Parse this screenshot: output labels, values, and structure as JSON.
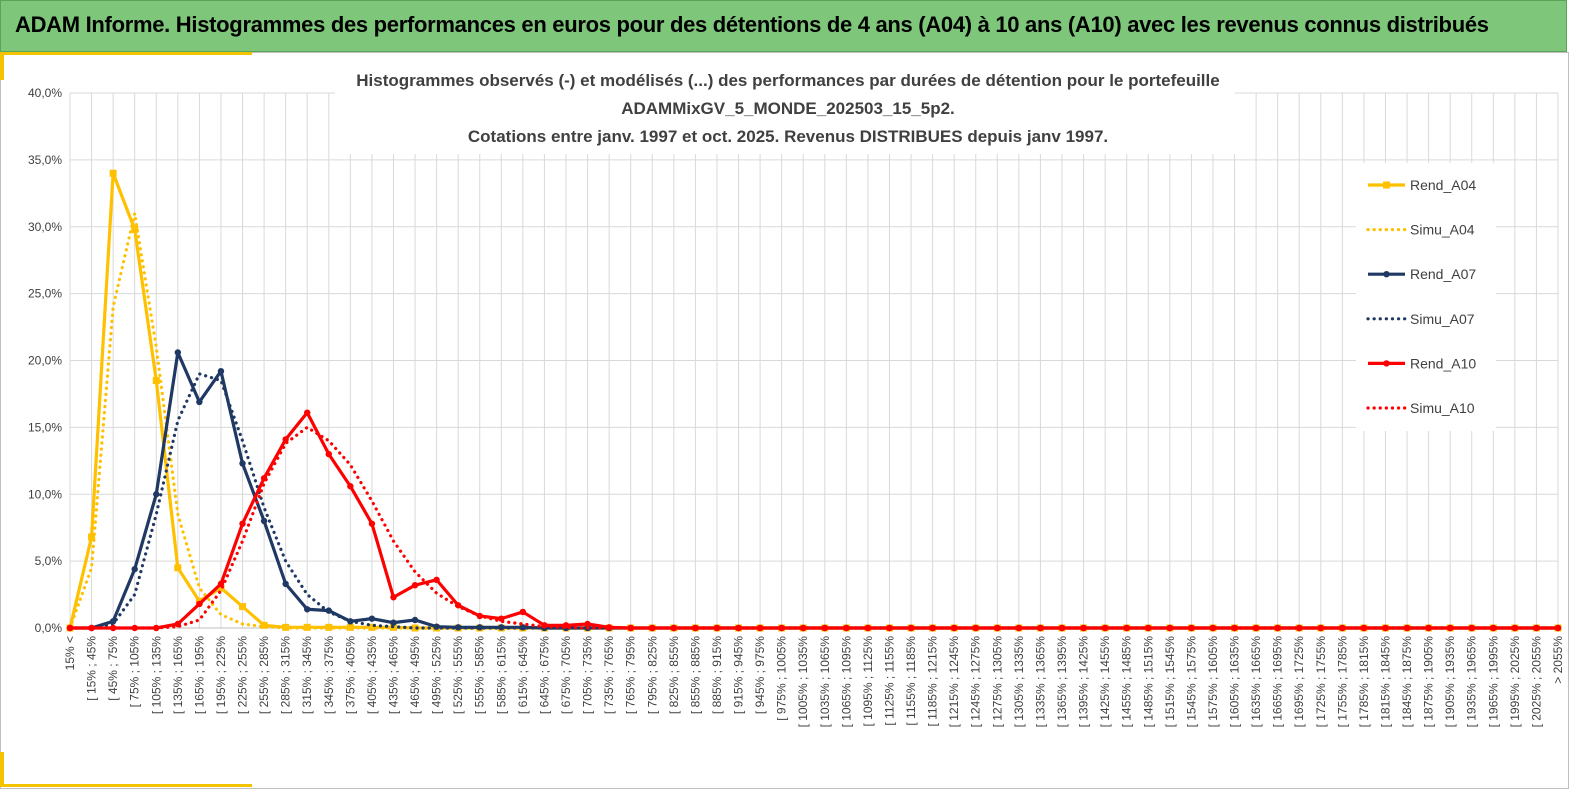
{
  "banner": {
    "title": "ADAM Informe. Histogrammes des performances en euros pour des détentions de 4 ans (A04) à 10 ans (A10) avec les revenus connus distribués"
  },
  "colors": {
    "yellow": "#FFC000",
    "navy": "#1F3864",
    "red": "#FF0000",
    "banner_green": "#7DC67A"
  },
  "chart_data": {
    "type": "line",
    "title_lines": [
      "Histogrammes observés (-) et modélisés (...) des performances par durées de détention pour le portefeuille",
      "ADAMMixGV_5_MONDE_202503_15_5p2.",
      "Cotations entre janv. 1997 et oct. 2025. Revenus DISTRIBUES depuis janv 1997."
    ],
    "ylim": [
      0,
      40
    ],
    "yticks": [
      "0,0%",
      "5,0%",
      "10,0%",
      "15,0%",
      "20,0%",
      "25,0%",
      "30,0%",
      "35,0%",
      "40,0%"
    ],
    "grid": true,
    "legend_position": "right",
    "categories": [
      "15% <",
      "[ 15% ; 45%",
      "[ 45% ; 75%",
      "[ 75% ; 105%",
      "[ 105% ; 135%",
      "[ 135% ; 165%",
      "[ 165% ; 195%",
      "[ 195% ; 225%",
      "[ 225% ; 255%",
      "[ 255% ; 285%",
      "[ 285% ; 315%",
      "[ 315% ; 345%",
      "[ 345% ; 375%",
      "[ 375% ; 405%",
      "[ 405% ; 435%",
      "[ 435% ; 465%",
      "[ 465% ; 495%",
      "[ 495% ; 525%",
      "[ 525% ; 555%",
      "[ 555% ; 585%",
      "[ 585% ; 615%",
      "[ 615% ; 645%",
      "[ 645% ; 675%",
      "[ 675% ; 705%",
      "[ 705% ; 735%",
      "[ 735% ; 765%",
      "[ 765% ; 795%",
      "[ 795% ; 825%",
      "[ 825% ; 855%",
      "[ 855% ; 885%",
      "[ 885% ; 915%",
      "[ 915% ; 945%",
      "[ 945% ; 975%",
      "[ 975% ; 1005%",
      "[ 1005% ; 1035%",
      "[ 1035% ; 1065%",
      "[ 1065% ; 1095%",
      "[ 1095% ; 1125%",
      "[ 1125% ; 1155%",
      "[ 1155% ; 1185%",
      "[ 1185% ; 1215%",
      "[ 1215% ; 1245%",
      "[ 1245% ; 1275%",
      "[ 1275% ; 1305%",
      "[ 1305% ; 1335%",
      "[ 1335% ; 1365%",
      "[ 1365% ; 1395%",
      "[ 1395% ; 1425%",
      "[ 1425% ; 1455%",
      "[ 1455% ; 1485%",
      "[ 1485% ; 1515%",
      "[ 1515% ; 1545%",
      "[ 1545% ; 1575%",
      "[ 1575% ; 1605%",
      "[ 1605% ; 1635%",
      "[ 1635% ; 1665%",
      "[ 1665% ; 1695%",
      "[ 1695% ; 1725%",
      "[ 1725% ; 1755%",
      "[ 1755% ; 1785%",
      "[ 1785% ; 1815%",
      "[ 1815% ; 1845%",
      "[ 1845% ; 1875%",
      "[ 1875% ; 1905%",
      "[ 1905% ; 1935%",
      "[ 1935% ; 1965%",
      "[ 1965% ; 1995%",
      "[ 1995% ; 2025%",
      "[ 2025% ; 2055%",
      "> 2055%"
    ],
    "series": [
      {
        "name": "Rend_A04",
        "style": "solid",
        "color": "#FFC000",
        "marker": "square",
        "values": [
          0,
          6.8,
          34.0,
          29.8,
          18.5,
          4.5,
          2.0,
          3.0,
          1.6,
          0.2,
          0.05,
          0.05,
          0.05,
          0.05,
          0.05,
          0.05,
          0,
          0,
          0,
          0,
          0,
          0,
          0,
          0,
          0,
          0,
          0,
          0,
          0,
          0,
          0,
          0,
          0,
          0,
          0,
          0,
          0,
          0,
          0,
          0,
          0,
          0,
          0,
          0,
          0,
          0,
          0,
          0,
          0,
          0,
          0,
          0,
          0,
          0,
          0,
          0,
          0,
          0,
          0,
          0,
          0,
          0,
          0,
          0,
          0,
          0,
          0,
          0,
          0,
          0
        ]
      },
      {
        "name": "Simu_A04",
        "style": "dotted",
        "color": "#FFC000",
        "marker": "none",
        "values": [
          0,
          4.5,
          24.0,
          31.0,
          21.0,
          8.5,
          3.0,
          1.0,
          0.3,
          0.1,
          0,
          0,
          0,
          0,
          0,
          0,
          0,
          0,
          0,
          0,
          0,
          0,
          0,
          0,
          0,
          0,
          0,
          0,
          0,
          0,
          0,
          0,
          0,
          0,
          0,
          0,
          0,
          0,
          0,
          0,
          0,
          0,
          0,
          0,
          0,
          0,
          0,
          0,
          0,
          0,
          0,
          0,
          0,
          0,
          0,
          0,
          0,
          0,
          0,
          0,
          0,
          0,
          0,
          0,
          0,
          0,
          0,
          0,
          0,
          0
        ]
      },
      {
        "name": "Rend_A07",
        "style": "solid",
        "color": "#1F3864",
        "marker": "circle",
        "values": [
          0,
          0,
          0.5,
          4.4,
          10.0,
          20.6,
          16.9,
          19.2,
          12.3,
          8.0,
          3.3,
          1.4,
          1.3,
          0.5,
          0.7,
          0.4,
          0.6,
          0.1,
          0.05,
          0.05,
          0.05,
          0.05,
          0,
          0,
          0,
          0,
          0,
          0,
          0,
          0,
          0,
          0,
          0,
          0,
          0,
          0,
          0,
          0,
          0,
          0,
          0,
          0,
          0,
          0,
          0,
          0,
          0,
          0,
          0,
          0,
          0,
          0,
          0,
          0,
          0,
          0,
          0,
          0,
          0,
          0,
          0,
          0,
          0,
          0,
          0,
          0,
          0,
          0,
          0,
          0
        ]
      },
      {
        "name": "Simu_A07",
        "style": "dotted",
        "color": "#1F3864",
        "marker": "none",
        "values": [
          0,
          0,
          0.3,
          2.5,
          8.5,
          15.5,
          19.0,
          18.5,
          14.0,
          9.0,
          5.0,
          2.5,
          1.2,
          0.5,
          0.2,
          0.1,
          0,
          0,
          0,
          0,
          0,
          0,
          0,
          0,
          0,
          0,
          0,
          0,
          0,
          0,
          0,
          0,
          0,
          0,
          0,
          0,
          0,
          0,
          0,
          0,
          0,
          0,
          0,
          0,
          0,
          0,
          0,
          0,
          0,
          0,
          0,
          0,
          0,
          0,
          0,
          0,
          0,
          0,
          0,
          0,
          0,
          0,
          0,
          0,
          0,
          0,
          0,
          0,
          0,
          0
        ]
      },
      {
        "name": "Rend_A10",
        "style": "solid",
        "color": "#FF0000",
        "marker": "circle",
        "values": [
          0,
          0,
          0,
          0,
          0,
          0.3,
          1.8,
          3.3,
          7.8,
          11.2,
          14.1,
          16.1,
          13.0,
          10.6,
          7.8,
          2.3,
          3.2,
          3.6,
          1.7,
          0.9,
          0.7,
          1.2,
          0.2,
          0.2,
          0.3,
          0.05,
          0,
          0,
          0,
          0,
          0,
          0,
          0,
          0,
          0,
          0,
          0,
          0,
          0,
          0,
          0,
          0,
          0,
          0,
          0,
          0,
          0,
          0,
          0,
          0,
          0,
          0,
          0,
          0,
          0,
          0,
          0,
          0,
          0,
          0,
          0,
          0,
          0,
          0,
          0,
          0,
          0,
          0,
          0,
          0
        ]
      },
      {
        "name": "Simu_A10",
        "style": "dotted",
        "color": "#FF0000",
        "marker": "none",
        "values": [
          0,
          0,
          0,
          0,
          0,
          0.1,
          0.6,
          2.8,
          6.5,
          10.8,
          13.8,
          15.0,
          14.0,
          12.2,
          9.5,
          6.5,
          4.2,
          2.6,
          1.6,
          0.9,
          0.5,
          0.3,
          0.1,
          0.05,
          0,
          0,
          0,
          0,
          0,
          0,
          0,
          0,
          0,
          0,
          0,
          0,
          0,
          0,
          0,
          0,
          0,
          0,
          0,
          0,
          0,
          0,
          0,
          0,
          0,
          0,
          0,
          0,
          0,
          0,
          0,
          0,
          0,
          0,
          0,
          0,
          0,
          0,
          0,
          0,
          0,
          0,
          0,
          0,
          0,
          0
        ]
      }
    ]
  }
}
